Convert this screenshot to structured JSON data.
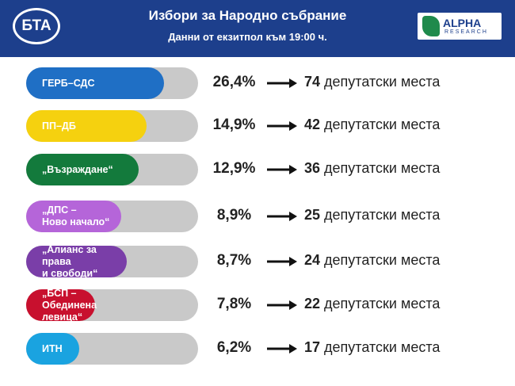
{
  "header": {
    "title": "Избори за Народно събрание",
    "subtitle": "Данни от екзитпол към 19:00 ч.",
    "logo_left": "БТА",
    "logo_right": {
      "name": "ALPHA",
      "tagline": "RESEARCH"
    }
  },
  "rows": [
    {
      "party": "ГЕРБ–СДС",
      "percent": "26,4%",
      "seats": "74",
      "seats_label": "депутатски места",
      "color": "#1f6fc5"
    },
    {
      "party": "ПП–ДБ",
      "percent": "14,9%",
      "seats": "42",
      "seats_label": "депутатски места",
      "color": "#f5d10f"
    },
    {
      "party": "„Възраждане“",
      "percent": "12,9%",
      "seats": "36",
      "seats_label": "депутатски места",
      "color": "#137a3c"
    },
    {
      "party": "„ДПС –\nНово начало“",
      "percent": "8,9%",
      "seats": "25",
      "seats_label": "депутатски места",
      "color": "#b565d9"
    },
    {
      "party": "„Алианс за права\nи свободи“",
      "percent": "8,7%",
      "seats": "24",
      "seats_label": "депутатски места",
      "color": "#7a3ea8"
    },
    {
      "party": "„БСП – Обединена\nлевица“",
      "percent": "7,8%",
      "seats": "22",
      "seats_label": "депутатски места",
      "color": "#c8102e"
    },
    {
      "party": "ИТН",
      "percent": "6,2%",
      "seats": "17",
      "seats_label": "депутатски места",
      "color": "#1aa3e0"
    }
  ]
}
